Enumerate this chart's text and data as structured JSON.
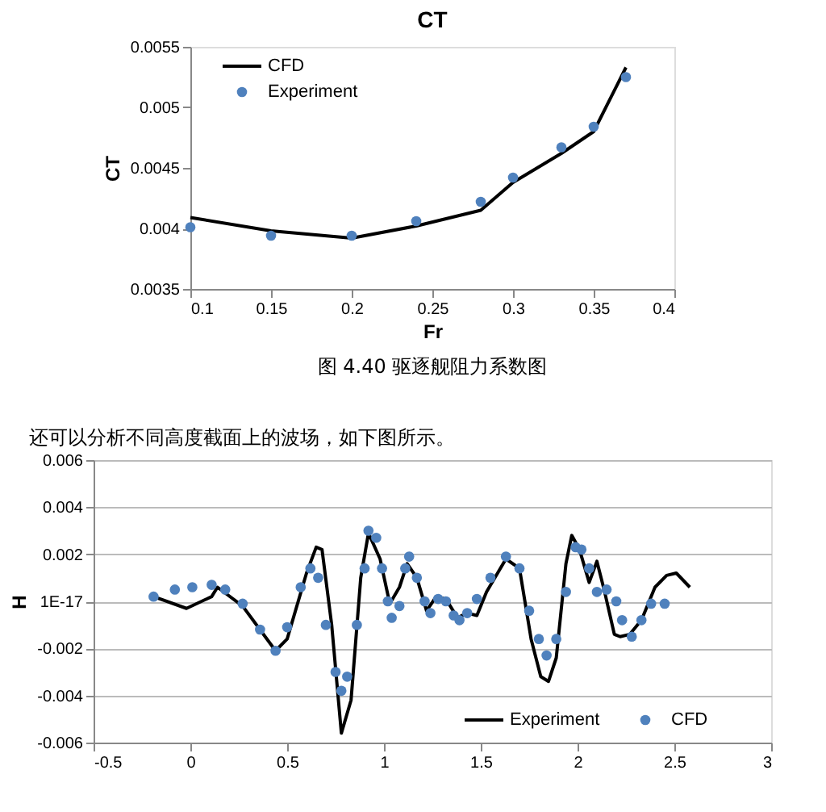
{
  "chart_data": [
    {
      "type": "line",
      "title": "CT",
      "xlabel": "Fr",
      "ylabel": "CT",
      "xlim": [
        0.1,
        0.4
      ],
      "xticks": [
        0.1,
        0.15,
        0.2,
        0.25,
        0.3,
        0.35,
        0.4
      ],
      "ylim": [
        0.0035,
        0.0055
      ],
      "yticks": [
        0.0035,
        0.004,
        0.0045,
        0.005,
        0.0055
      ],
      "grid": false,
      "legend": "top left",
      "annotations": [
        "图 4.40 驱逐舰阻力系数图"
      ],
      "series": [
        {
          "name": "CFD",
          "type": "line",
          "color": "#000000",
          "x": [
            0.1,
            0.15,
            0.2,
            0.24,
            0.28,
            0.3,
            0.33,
            0.35,
            0.37
          ],
          "values": [
            0.00409,
            0.00398,
            0.00392,
            0.00402,
            0.00415,
            0.00438,
            0.00462,
            0.0048,
            0.00533
          ]
        },
        {
          "name": "Experiment",
          "type": "scatter",
          "marker": "circle",
          "color": "#4f81bd",
          "x": [
            0.1,
            0.15,
            0.2,
            0.24,
            0.28,
            0.3,
            0.33,
            0.35,
            0.37
          ],
          "values": [
            0.00401,
            0.00394,
            0.00394,
            0.00406,
            0.00422,
            0.00442,
            0.00467,
            0.00484,
            0.00525
          ]
        }
      ]
    },
    {
      "type": "line",
      "ylabel": "H",
      "xlim": [
        -0.5,
        3
      ],
      "xticks": [
        -0.5,
        0,
        0.5,
        1,
        1.5,
        2,
        2.5,
        3
      ],
      "ylim": [
        -0.006,
        0.006
      ],
      "yticks": [
        -0.006,
        -0.004,
        -0.002,
        {
          "value": 0,
          "label": "1E-17"
        },
        0.002,
        0.004,
        0.006
      ],
      "grid": "y",
      "legend": "bottom right",
      "annotations": [
        "还可以分析不同高度截面上的波场，如下图所示。"
      ],
      "series": [
        {
          "name": "Experiment",
          "type": "line",
          "color": "#000000",
          "x": [
            -0.19,
            -0.02,
            0.11,
            0.14,
            0.27,
            0.44,
            0.5,
            0.6,
            0.65,
            0.68,
            0.73,
            0.78,
            0.83,
            0.88,
            0.92,
            0.98,
            1.03,
            1.08,
            1.12,
            1.17,
            1.22,
            1.27,
            1.32,
            1.38,
            1.43,
            1.48,
            1.53,
            1.63,
            1.7,
            1.76,
            1.81,
            1.85,
            1.89,
            1.94,
            1.97,
            2.01,
            2.06,
            2.1,
            2.14,
            2.19,
            2.22,
            2.27,
            2.33,
            2.4,
            2.46,
            2.51,
            2.58
          ],
          "values": [
            0.0002,
            -0.0003,
            0.0002,
            0.0006,
            -0.0002,
            -0.0021,
            -0.0016,
            0.0012,
            0.0023,
            0.0022,
            -0.001,
            -0.0056,
            -0.0042,
            0.001,
            0.0029,
            0.0018,
            -0.0001,
            0.0006,
            0.0016,
            0.001,
            -0.0004,
            0.0002,
            0.0001,
            -0.0007,
            -0.0005,
            -0.0006,
            0.0004,
            0.0018,
            0.0014,
            -0.0016,
            -0.0032,
            -0.0034,
            -0.0024,
            0.0016,
            0.0028,
            0.0022,
            0.0008,
            0.0017,
            0.0004,
            -0.0014,
            -0.0015,
            -0.0014,
            -0.0008,
            0.0006,
            0.0011,
            0.0012,
            0.0006
          ]
        },
        {
          "name": "CFD",
          "type": "scatter",
          "marker": "circle",
          "color": "#4f81bd",
          "x": [
            -0.19,
            -0.08,
            0.01,
            0.11,
            0.18,
            0.27,
            0.36,
            0.44,
            0.5,
            0.57,
            0.62,
            0.66,
            0.7,
            0.75,
            0.78,
            0.81,
            0.86,
            0.9,
            0.92,
            0.96,
            0.99,
            1.02,
            1.04,
            1.08,
            1.11,
            1.13,
            1.17,
            1.21,
            1.24,
            1.28,
            1.32,
            1.36,
            1.39,
            1.43,
            1.48,
            1.55,
            1.63,
            1.7,
            1.75,
            1.8,
            1.84,
            1.89,
            1.94,
            1.99,
            2.02,
            2.06,
            2.1,
            2.15,
            2.2,
            2.23,
            2.28,
            2.33,
            2.38,
            2.45
          ],
          "values": [
            0.0002,
            0.0005,
            0.0006,
            0.0007,
            0.0005,
            -0.0001,
            -0.0012,
            -0.0021,
            -0.0011,
            0.0006,
            0.0014,
            0.001,
            -0.001,
            -0.003,
            -0.0038,
            -0.0032,
            -0.001,
            0.0014,
            0.003,
            0.0027,
            0.0014,
            0.0,
            -0.0007,
            -0.0002,
            0.0014,
            0.0019,
            0.001,
            0.0,
            -0.0005,
            0.0001,
            0.0,
            -0.0006,
            -0.0008,
            -0.0005,
            0.0001,
            0.001,
            0.0019,
            0.0014,
            -0.0004,
            -0.0016,
            -0.0023,
            -0.0016,
            0.0004,
            0.0023,
            0.0022,
            0.0014,
            0.0004,
            0.0005,
            0.0,
            -0.0008,
            -0.0015,
            -0.0008,
            -0.0001,
            -0.0001
          ]
        }
      ]
    }
  ]
}
